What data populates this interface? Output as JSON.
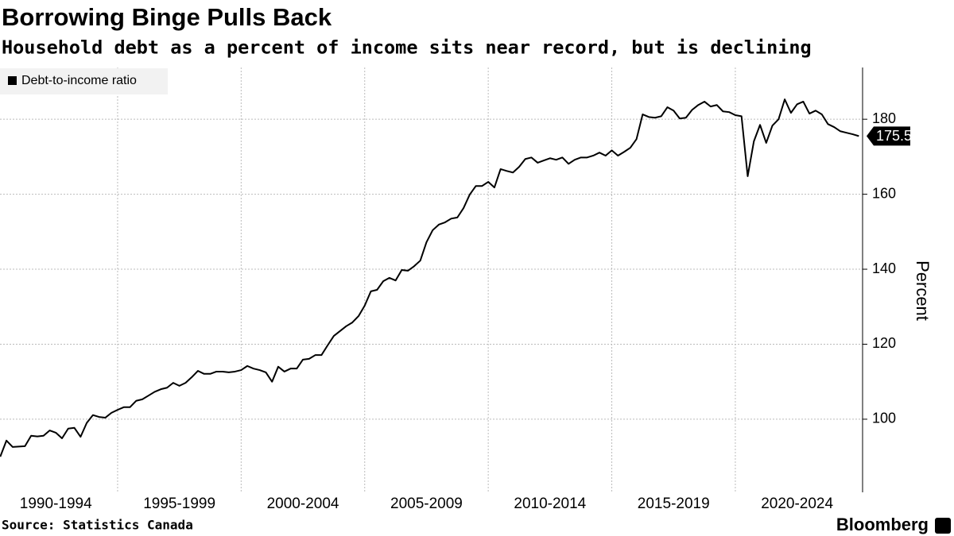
{
  "chart_data": {
    "type": "line",
    "title": "Borrowing Binge Pulls Back",
    "subtitle": "Household debt as a percent of income sits near record, but is declining",
    "y_label": "Percent",
    "source": "Source: Statistics Canada",
    "brand": "Bloomberg",
    "x": [
      1990.25,
      1990.5,
      1990.75,
      1991,
      1991.25,
      1991.5,
      1991.75,
      1992,
      1992.25,
      1992.5,
      1992.75,
      1993,
      1993.25,
      1993.5,
      1993.75,
      1994,
      1994.25,
      1994.5,
      1994.75,
      1995,
      1995.25,
      1995.5,
      1995.75,
      1996,
      1996.25,
      1996.5,
      1996.75,
      1997,
      1997.25,
      1997.5,
      1997.75,
      1998,
      1998.25,
      1998.5,
      1998.75,
      1999,
      1999.25,
      1999.5,
      1999.75,
      2000,
      2000.25,
      2000.5,
      2000.75,
      2001,
      2001.25,
      2001.5,
      2001.75,
      2002,
      2002.25,
      2002.5,
      2002.75,
      2003,
      2003.25,
      2003.5,
      2003.75,
      2004,
      2004.25,
      2004.5,
      2004.75,
      2005,
      2005.25,
      2005.5,
      2005.75,
      2006,
      2006.25,
      2006.5,
      2006.75,
      2007,
      2007.25,
      2007.5,
      2007.75,
      2008,
      2008.25,
      2008.5,
      2008.75,
      2009,
      2009.25,
      2009.5,
      2009.75,
      2010,
      2010.25,
      2010.5,
      2010.75,
      2011,
      2011.25,
      2011.5,
      2011.75,
      2012,
      2012.25,
      2012.5,
      2012.75,
      2013,
      2013.25,
      2013.5,
      2013.75,
      2014,
      2014.25,
      2014.5,
      2014.75,
      2015,
      2015.25,
      2015.5,
      2015.75,
      2016,
      2016.25,
      2016.5,
      2016.75,
      2017,
      2017.25,
      2017.5,
      2017.75,
      2018,
      2018.25,
      2018.5,
      2018.75,
      2019,
      2019.25,
      2019.5,
      2019.75,
      2020,
      2020.25,
      2020.5,
      2020.75,
      2021,
      2021.25,
      2021.5,
      2021.75,
      2022,
      2022.25,
      2022.5,
      2022.75,
      2023,
      2023.25,
      2023.5,
      2023.75,
      2024,
      2024.25,
      2024.5,
      2024.75,
      2025
    ],
    "series": [
      {
        "name": "Debt-to-income ratio",
        "color": "#000000",
        "values": [
          90.0,
          94.3,
          92.6,
          92.7,
          92.8,
          95.6,
          95.4,
          95.6,
          97.0,
          96.4,
          94.9,
          97.5,
          97.7,
          95.3,
          99.0,
          101.1,
          100.6,
          100.4,
          101.7,
          102.5,
          103.2,
          103.2,
          104.9,
          105.3,
          106.3,
          107.3,
          108.0,
          108.4,
          109.7,
          108.9,
          109.7,
          111.2,
          112.9,
          112.1,
          112.1,
          112.7,
          112.7,
          112.5,
          112.7,
          113.1,
          114.2,
          113.5,
          113.1,
          112.5,
          110.0,
          114.0,
          112.7,
          113.5,
          113.5,
          115.9,
          116.1,
          117.1,
          117.1,
          119.7,
          122.2,
          123.5,
          124.8,
          125.8,
          127.5,
          130.3,
          134.1,
          134.5,
          136.8,
          137.7,
          137.0,
          139.8,
          139.6,
          140.8,
          142.3,
          147.2,
          150.4,
          151.9,
          152.5,
          153.5,
          153.8,
          156.3,
          159.9,
          162.2,
          162.2,
          163.3,
          161.8,
          166.7,
          166.2,
          165.8,
          167.3,
          169.4,
          169.8,
          168.4,
          169.0,
          169.6,
          169.2,
          169.8,
          168.1,
          169.2,
          169.8,
          169.8,
          170.3,
          171.1,
          170.3,
          171.7,
          170.3,
          171.3,
          172.4,
          174.7,
          181.3,
          180.6,
          180.4,
          180.8,
          183.2,
          182.3,
          180.2,
          180.4,
          182.5,
          183.8,
          184.7,
          183.4,
          183.8,
          182.1,
          181.9,
          181.1,
          180.8,
          164.8,
          174.1,
          178.5,
          173.7,
          178.3,
          180.0,
          185.3,
          181.7,
          184.0,
          184.7,
          181.5,
          182.3,
          181.3,
          178.7,
          177.9,
          176.8,
          176.4,
          176.0,
          175.51
        ]
      }
    ],
    "xlim": [
      1990.24,
      2025.15
    ],
    "xticks": [
      {
        "value": 1992.5,
        "label": "1990-1994"
      },
      {
        "value": 1997.5,
        "label": "1995-1999"
      },
      {
        "value": 2002.5,
        "label": "2000-2004"
      },
      {
        "value": 2007.5,
        "label": "2005-2009"
      },
      {
        "value": 2012.5,
        "label": "2010-2014"
      },
      {
        "value": 2017.5,
        "label": "2015-2019"
      },
      {
        "value": 2022.5,
        "label": "2020-2024"
      }
    ],
    "xgrid": [
      1995,
      2000,
      2005,
      2010,
      2015,
      2020
    ],
    "ylim": [
      80.5,
      193.8
    ],
    "yticks": [
      100,
      120,
      140,
      160,
      180
    ],
    "grid": true,
    "legend": "top-left"
  }
}
